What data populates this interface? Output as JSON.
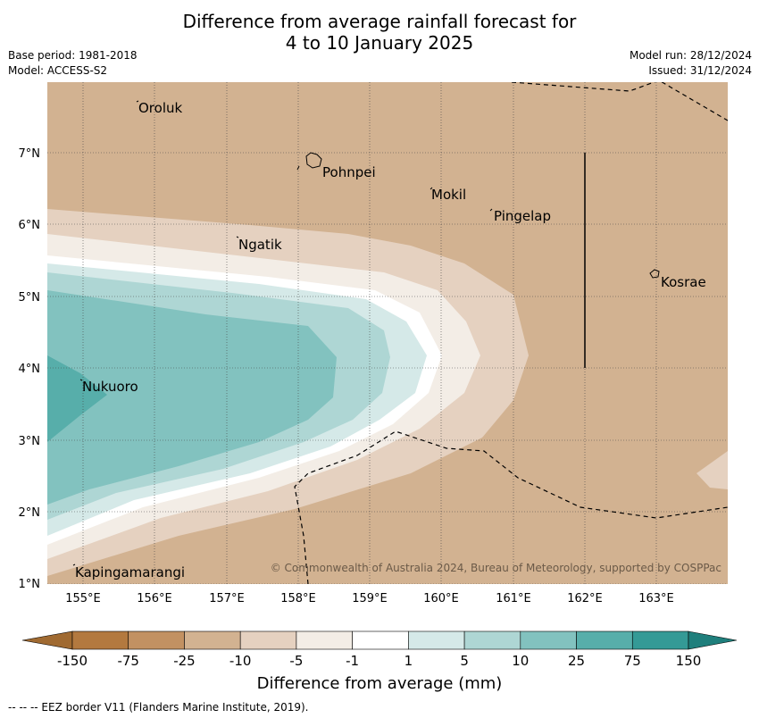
{
  "title": {
    "line1": "Difference from average rainfall forecast for",
    "line2": "4 to 10 January 2025"
  },
  "meta": {
    "base_period": "Base period: 1981-2018",
    "model": "Model: ACCESS-S2",
    "model_run": "Model run: 28/12/2024",
    "issued": "Issued: 31/12/2024"
  },
  "axes": {
    "lon_labels": [
      "155°E",
      "156°E",
      "157°E",
      "158°E",
      "159°E",
      "160°E",
      "161°E",
      "162°E",
      "163°E"
    ],
    "lat_labels": [
      "7°N",
      "6°N",
      "5°N",
      "4°N",
      "3°N",
      "2°N",
      "1°N"
    ]
  },
  "places": [
    {
      "name": "Oroluk"
    },
    {
      "name": "Pohnpei"
    },
    {
      "name": "Mokil"
    },
    {
      "name": "Pingelap"
    },
    {
      "name": "Ngatik"
    },
    {
      "name": "Kosrae"
    },
    {
      "name": "Nukuoro"
    },
    {
      "name": "Kapingamarangi"
    }
  ],
  "copyright": "© Commonwealth of Australia 2024, Bureau of Meteorology, supported by COSPPac",
  "colorbar": {
    "title": "Difference from average (mm)",
    "tick_labels": [
      "-150",
      "-75",
      "-25",
      "-10",
      "-5",
      "-1",
      "1",
      "5",
      "10",
      "25",
      "75",
      "150"
    ],
    "colors": [
      "#a06a31",
      "#b3793f",
      "#c29162",
      "#d2b291",
      "#e5d1c0",
      "#f3ede6",
      "#ffffff",
      "#d5e9e8",
      "#aed6d4",
      "#82c2bf",
      "#57aeaa",
      "#349a96",
      "#1f7f7c"
    ]
  },
  "footnote": "--  --  -- EEZ border V11 (Flanders Marine Institute, 2019)."
}
